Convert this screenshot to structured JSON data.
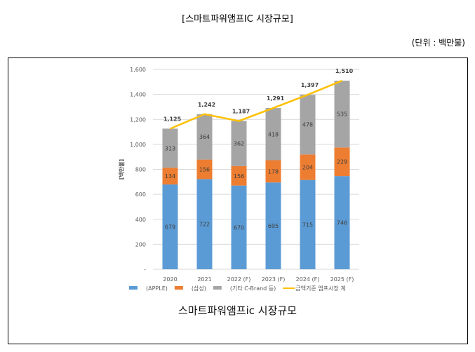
{
  "page_title": "[스마트파워앰프IC 시장규모]",
  "unit_note": "(단위 : 백만불)",
  "caption": "스마트파워앰프ic 시장규모",
  "chart_data": {
    "type": "bar",
    "stacked": true,
    "categories": [
      "2020",
      "2021",
      "2022 (F)",
      "2023 (F)",
      "2024 (F)",
      "2025 (F)"
    ],
    "series": [
      {
        "name": "(APPLE)",
        "color": "#5b9bd5",
        "values": [
          679,
          722,
          670,
          695,
          715,
          746
        ]
      },
      {
        "name": "(삼성)",
        "color": "#ed7d31",
        "values": [
          134,
          156,
          156,
          178,
          204,
          229
        ]
      },
      {
        "name": "(기타 C-Brand 등)",
        "color": "#a5a5a5",
        "values": [
          313,
          364,
          362,
          418,
          478,
          535
        ]
      }
    ],
    "line": {
      "name": "금액기준 앰프시장 계",
      "color": "#ffc000",
      "values": [
        1125,
        1242,
        1187,
        1291,
        1397,
        1510
      ],
      "labels": [
        "1,125",
        "1,242",
        "1,187",
        "1,291",
        "1,397",
        "1,510"
      ]
    },
    "ylabel": "[백만불]",
    "ylim": [
      0,
      1600
    ],
    "yticks": [
      0,
      200,
      400,
      600,
      800,
      1000,
      1200,
      1400,
      1600
    ],
    "ytick_labels": [
      "-",
      "200",
      "400",
      "600",
      "800",
      "1,000",
      "1,200",
      "1,400",
      "1,600"
    ],
    "grid": true,
    "legend": "bottom"
  }
}
